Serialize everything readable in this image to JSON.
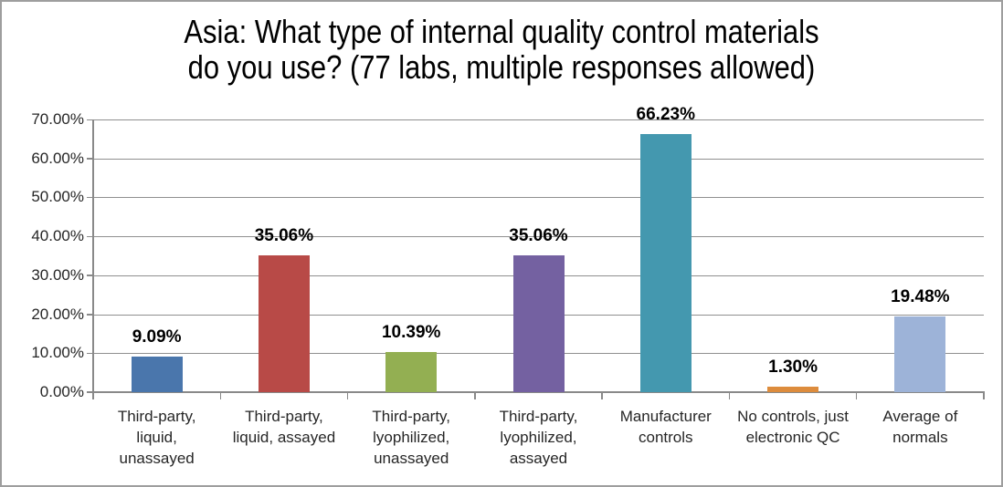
{
  "title": {
    "line1": "Asia: What type of internal quality control materials",
    "line2": "do you use? (77 labs, multiple responses allowed)"
  },
  "chart_data": {
    "type": "bar",
    "title": "Asia: What type of internal quality control materials do you use? (77 labs, multiple responses allowed)",
    "categories": [
      "Third-party, liquid, unassayed",
      "Third-party, liquid, assayed",
      "Third-party, lyophilized, unassayed",
      "Third-party, lyophilized, assayed",
      "Manufacturer controls",
      "No controls, just electronic QC",
      "Average of normals"
    ],
    "category_lines": [
      [
        "Third-party,",
        "liquid,",
        "unassayed"
      ],
      [
        "Third-party,",
        "liquid, assayed"
      ],
      [
        "Third-party,",
        "lyophilized,",
        "unassayed"
      ],
      [
        "Third-party,",
        "lyophilized,",
        "assayed"
      ],
      [
        "Manufacturer",
        "controls"
      ],
      [
        "No controls, just",
        "electronic QC"
      ],
      [
        "Average of",
        "normals"
      ]
    ],
    "values": [
      9.09,
      35.06,
      10.39,
      35.06,
      66.23,
      1.3,
      19.48
    ],
    "value_labels": [
      "9.09%",
      "35.06%",
      "10.39%",
      "35.06%",
      "66.23%",
      "1.30%",
      "19.48%"
    ],
    "bar_colors": [
      "#4A76AC",
      "#B84A47",
      "#93AF52",
      "#7461A1",
      "#4498AF",
      "#DD8C3D",
      "#9DB3D8"
    ],
    "xlabel": "",
    "ylabel": "",
    "ylim": [
      0,
      70
    ],
    "ytick_step": 10,
    "ytick_labels": [
      "0.00%",
      "10.00%",
      "20.00%",
      "30.00%",
      "40.00%",
      "50.00%",
      "60.00%",
      "70.00%"
    ],
    "grid": true,
    "legend": false
  },
  "colors": {
    "bar_blue": "#4A76AC",
    "bar_red": "#B84A47",
    "bar_green": "#93AF52",
    "bar_purple": "#7461A1",
    "bar_teal": "#4498AF",
    "bar_orange": "#DD8C3D",
    "bar_light_blue": "#9DB3D8",
    "gridline": "#8F8F8F",
    "axis": "#898989",
    "frame_border": "#9E9E9E",
    "label_text": "#262626",
    "title_text": "#000000"
  }
}
